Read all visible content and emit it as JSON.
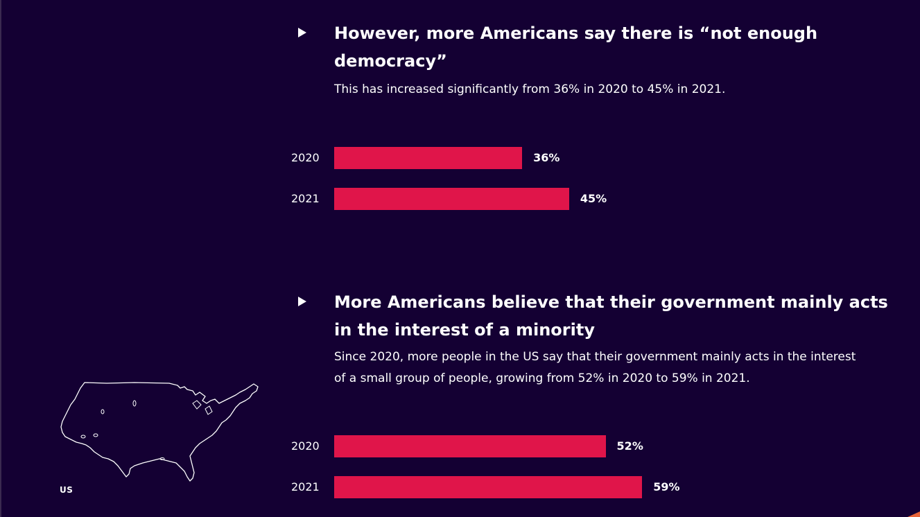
{
  "sections": [
    {
      "heading": "However, more Americans say there is “not enough democracy”",
      "description": "This has increased significantly from 36% in 2020 to 45% in 2021."
    },
    {
      "heading": "More Americans believe that their government mainly acts in the interest of a minority",
      "description": "Since 2020, more people in the US say that their government mainly acts in the interest of a small group of people, growing from 52% in 2020 to 59% in 2021."
    }
  ],
  "map": {
    "label": "US",
    "icon": "us-map-outline"
  },
  "colors": {
    "background": "#140033",
    "bar": "#e0154a",
    "text": "#ffffff"
  },
  "chart_data": [
    {
      "type": "bar",
      "orientation": "horizontal",
      "categories": [
        "2020",
        "2021"
      ],
      "values": [
        36,
        45
      ],
      "value_labels": [
        "36%",
        "45%"
      ],
      "xlim": [
        0,
        100
      ],
      "grid": false
    },
    {
      "type": "bar",
      "orientation": "horizontal",
      "categories": [
        "2020",
        "2021"
      ],
      "values": [
        52,
        59
      ],
      "value_labels": [
        "52%",
        "59%"
      ],
      "xlim": [
        0,
        100
      ],
      "grid": false
    }
  ]
}
